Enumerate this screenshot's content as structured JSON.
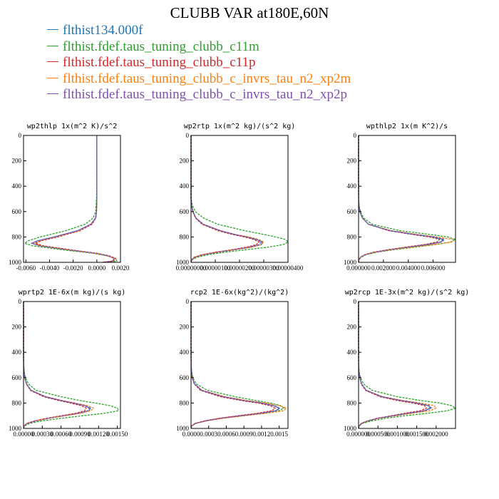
{
  "title": "CLUBB VAR at180E,60N",
  "legend": [
    {
      "name": "flthist134.000f",
      "color": "#1f77b4"
    },
    {
      "name": "flthist.fdef.taus_tuning_clubb_c11m",
      "color": "#2ca02c"
    },
    {
      "name": "flthist.fdef.taus_tuning_clubb_c11p",
      "color": "#d62728"
    },
    {
      "name": "flthist.fdef.taus_tuning_clubb_c_invrs_tau_n2_xp2m",
      "color": "#ff7f0e"
    },
    {
      "name": "flthist.fdef.taus_tuning_clubb_c_invrs_tau_n2_xp2p",
      "color": "#7f4fb0"
    }
  ],
  "chart_data": [
    {
      "type": "line",
      "title": "wp2thlp  1x(m^2 K)/s^2",
      "xlim": [
        -0.0062,
        0.002
      ],
      "ylim": [
        1000,
        0
      ],
      "y_reversed": true,
      "xticks": [
        -0.006,
        -0.004,
        -0.002,
        0.0,
        0.002
      ],
      "xtick_labels": [
        "-0.0060",
        "-0.0040",
        "-0.0020",
        "0.0000",
        "0.0020"
      ],
      "yticks": [
        0,
        200,
        400,
        600,
        800,
        1000
      ],
      "ytick_labels": [
        "0",
        "200",
        "400",
        "600",
        "800",
        "1000"
      ],
      "y": [
        0,
        200,
        400,
        500,
        600,
        650,
        700,
        750,
        800,
        830,
        850,
        870,
        900,
        930,
        950,
        970,
        990,
        1000
      ],
      "series": [
        {
          "values": [
            0.0,
            0.0,
            0.0,
            0.0,
            -3e-05,
            -0.0001,
            -0.0005,
            -0.0016,
            -0.0036,
            -0.005,
            -0.0055,
            -0.0048,
            -0.0025,
            0.0,
            0.001,
            0.0015,
            0.0013,
            0.0005
          ]
        },
        {
          "values": [
            0.0,
            0.0,
            -1e-05,
            -3e-05,
            -0.0001,
            -0.0003,
            -0.001,
            -0.0026,
            -0.0048,
            -0.0058,
            -0.0061,
            -0.0054,
            -0.003,
            -0.0002,
            0.0009,
            0.0016,
            0.0017,
            0.0007
          ]
        },
        {
          "values": [
            0.0,
            0.0,
            0.0,
            0.0,
            -2e-05,
            -8e-05,
            -0.0004,
            -0.0014,
            -0.0033,
            -0.0047,
            -0.0052,
            -0.0045,
            -0.0023,
            0.0001,
            0.0011,
            0.0016,
            0.0014,
            0.0005
          ]
        },
        {
          "values": [
            0.0,
            0.0,
            0.0,
            0.0,
            -3e-05,
            -0.0001,
            -0.0005,
            -0.0015,
            -0.0035,
            -0.0049,
            -0.0054,
            -0.0047,
            -0.0025,
            0.0,
            0.001,
            0.0015,
            0.0013,
            0.0005
          ]
        },
        {
          "values": [
            0.0,
            0.0,
            0.0,
            0.0,
            -3e-05,
            -0.0001,
            -0.0005,
            -0.0016,
            -0.0036,
            -0.005,
            -0.0055,
            -0.0048,
            -0.0025,
            0.0,
            0.001,
            0.0015,
            0.0013,
            0.0005
          ]
        }
      ]
    },
    {
      "type": "line",
      "title": "wp2rtp  1x(m^2 kg)/(s^2 kg)",
      "xlim": [
        0,
        4e-06
      ],
      "ylim": [
        1000,
        0
      ],
      "y_reversed": true,
      "xticks": [
        0,
        1e-06,
        2e-06,
        3e-06,
        4e-06
      ],
      "xtick_labels": [
        "0.00000000",
        "0.00000100",
        "0.00000200",
        "0.00000300",
        "0.00000400"
      ],
      "yticks": [
        0,
        200,
        400,
        600,
        800,
        1000
      ],
      "ytick_labels": [
        "0",
        "200",
        "400",
        "600",
        "800",
        "1000"
      ],
      "y": [
        0,
        400,
        500,
        550,
        600,
        650,
        700,
        750,
        780,
        800,
        820,
        840,
        860,
        880,
        900,
        920,
        940,
        960,
        980,
        1000
      ],
      "series": [
        {
          "values": [
            0,
            0,
            0,
            2e-08,
            8e-08,
            2e-07,
            5e-07,
            1.2e-06,
            1.8e-06,
            2.3e-06,
            2.7e-06,
            2.95e-06,
            2.9e-06,
            2.5e-06,
            1.8e-06,
            1.1e-06,
            5e-07,
            1.5e-07,
            3e-08,
            0
          ]
        },
        {
          "values": [
            0,
            0,
            1e-08,
            5e-08,
            1.8e-07,
            5e-07,
            1.1e-06,
            2.2e-06,
            3e-06,
            3.5e-06,
            3.9e-06,
            4e-06,
            3.8e-06,
            3.2e-06,
            2.3e-06,
            1.4e-06,
            7e-07,
            2.5e-07,
            5e-08,
            0
          ]
        },
        {
          "values": [
            0,
            0,
            0,
            2e-08,
            7e-08,
            1.8e-07,
            4.5e-07,
            1.1e-06,
            1.7e-06,
            2.2e-06,
            2.6e-06,
            2.8e-06,
            2.7e-06,
            2.3e-06,
            1.7e-06,
            1e-06,
            4.5e-07,
            1.2e-07,
            2e-08,
            0
          ]
        },
        {
          "values": [
            0,
            0,
            0,
            2e-08,
            8e-08,
            2e-07,
            5e-07,
            1.2e-06,
            1.8e-06,
            2.4e-06,
            2.8e-06,
            3e-06,
            2.9e-06,
            2.5e-06,
            1.8e-06,
            1.1e-06,
            5e-07,
            1.5e-07,
            3e-08,
            0
          ]
        },
        {
          "values": [
            0,
            0,
            0,
            2e-08,
            8e-08,
            2e-07,
            5e-07,
            1.2e-06,
            1.8e-06,
            2.3e-06,
            2.7e-06,
            2.9e-06,
            2.8e-06,
            2.4e-06,
            1.8e-06,
            1.1e-06,
            5e-07,
            1.5e-07,
            3e-08,
            0
          ]
        }
      ]
    },
    {
      "type": "line",
      "title": "wpthlp2  1x(m K^2)/s",
      "xlim": [
        0,
        0.0078
      ],
      "ylim": [
        1000,
        0
      ],
      "y_reversed": true,
      "xticks": [
        0,
        0.002,
        0.004,
        0.006
      ],
      "xtick_labels": [
        "0.000000",
        "0.002000",
        "0.004000",
        "0.006000"
      ],
      "yticks": [
        0,
        200,
        400,
        600,
        800,
        1000
      ],
      "ytick_labels": [
        "0",
        "200",
        "400",
        "600",
        "800",
        "1000"
      ],
      "y": [
        0,
        400,
        500,
        550,
        600,
        650,
        700,
        750,
        780,
        800,
        820,
        840,
        860,
        880,
        900,
        920,
        940,
        960,
        980,
        1000
      ],
      "series": [
        {
          "values": [
            0,
            0,
            1e-05,
            3e-05,
            0.0001,
            0.0003,
            0.0008,
            0.0025,
            0.0045,
            0.006,
            0.0068,
            0.0066,
            0.0055,
            0.004,
            0.0025,
            0.0013,
            0.0005,
            0.00015,
            3e-05,
            0
          ]
        },
        {
          "values": [
            0,
            0,
            1e-05,
            4e-05,
            0.00015,
            0.0004,
            0.0011,
            0.0033,
            0.0057,
            0.0072,
            0.0078,
            0.0074,
            0.0062,
            0.0046,
            0.0029,
            0.0015,
            0.0006,
            0.0002,
            4e-05,
            0
          ]
        },
        {
          "values": [
            0,
            0,
            1e-05,
            3e-05,
            0.0001,
            0.0003,
            0.0008,
            0.0024,
            0.0043,
            0.0057,
            0.0065,
            0.0063,
            0.0053,
            0.0038,
            0.0024,
            0.0012,
            0.0005,
            0.00015,
            3e-05,
            0
          ]
        },
        {
          "values": [
            0,
            0,
            1e-05,
            3e-05,
            0.0001,
            0.0003,
            0.0008,
            0.0026,
            0.0047,
            0.0063,
            0.0076,
            0.0075,
            0.0061,
            0.0043,
            0.0026,
            0.0013,
            0.0005,
            0.00015,
            3e-05,
            0
          ]
        },
        {
          "values": [
            0,
            0,
            1e-05,
            3e-05,
            0.0001,
            0.0003,
            0.0008,
            0.0025,
            0.0045,
            0.0061,
            0.0069,
            0.0067,
            0.0056,
            0.004,
            0.0025,
            0.0013,
            0.0005,
            0.00015,
            3e-05,
            0
          ]
        }
      ]
    },
    {
      "type": "line",
      "title": "wprtp2  1E-6x(m kg)/(s kg)",
      "xlim": [
        0,
        0.00155
      ],
      "ylim": [
        1000,
        0
      ],
      "y_reversed": true,
      "xticks": [
        0,
        0.0003,
        0.0006,
        0.0009,
        0.0012,
        0.0015
      ],
      "xtick_labels": [
        "0.00000",
        "0.00030",
        "0.00060",
        "0.00090",
        "0.00120",
        "0.00150"
      ],
      "yticks": [
        0,
        200,
        400,
        600,
        800,
        1000
      ],
      "ytick_labels": [
        "0",
        "200",
        "400",
        "600",
        "800",
        "1000"
      ],
      "y": [
        0,
        400,
        500,
        550,
        600,
        650,
        700,
        750,
        780,
        800,
        820,
        840,
        860,
        880,
        900,
        920,
        940,
        960,
        980,
        1000
      ],
      "series": [
        {
          "values": [
            0,
            0,
            2e-06,
            8e-06,
            2e-05,
            5e-05,
            0.00012,
            0.00035,
            0.0006,
            0.0008,
            0.00098,
            0.00107,
            0.00105,
            0.0009,
            0.00065,
            0.0004,
            0.0002,
            6e-05,
            1e-05,
            0
          ]
        },
        {
          "values": [
            0,
            0,
            3e-06,
            1.2e-05,
            3e-05,
            8e-05,
            0.0002,
            0.0006,
            0.0009,
            0.00115,
            0.00138,
            0.0015,
            0.00152,
            0.0013,
            0.00095,
            0.0006,
            0.0003,
            0.0001,
            2e-05,
            0
          ]
        },
        {
          "values": [
            0,
            0,
            2e-06,
            7e-06,
            1.8e-05,
            4.5e-05,
            0.00011,
            0.00032,
            0.00056,
            0.00075,
            0.00092,
            0.001,
            0.00098,
            0.00084,
            0.0006,
            0.00037,
            0.00018,
            5e-05,
            1e-05,
            0
          ]
        },
        {
          "values": [
            0,
            0,
            2e-06,
            8e-06,
            2e-05,
            5e-05,
            0.00012,
            0.00036,
            0.00062,
            0.00083,
            0.00102,
            0.00112,
            0.00108,
            0.00092,
            0.00066,
            0.0004,
            0.0002,
            6e-05,
            1e-05,
            0
          ]
        },
        {
          "values": [
            0,
            0,
            2e-06,
            8e-06,
            2e-05,
            5e-05,
            0.00012,
            0.00035,
            0.0006,
            0.0008,
            0.00097,
            0.00105,
            0.00103,
            0.00088,
            0.00064,
            0.0004,
            0.0002,
            6e-05,
            1e-05,
            0
          ]
        }
      ]
    },
    {
      "type": "line",
      "title": "rcp2  1E-6x(kg^2)/(kg^2)",
      "xlim": [
        0,
        0.00165
      ],
      "ylim": [
        1000,
        0
      ],
      "y_reversed": true,
      "xticks": [
        0,
        0.0003,
        0.0006,
        0.0009,
        0.0012,
        0.0015
      ],
      "xtick_labels": [
        "0.0000",
        "0.0003",
        "0.0006",
        "0.0009",
        "0.0012",
        "0.0015"
      ],
      "yticks": [
        0,
        200,
        400,
        600,
        800,
        1000
      ],
      "ytick_labels": [
        "0",
        "200",
        "400",
        "600",
        "800",
        "1000"
      ],
      "y": [
        0,
        400,
        500,
        550,
        600,
        650,
        700,
        750,
        780,
        800,
        820,
        840,
        860,
        880,
        900,
        920,
        940,
        960,
        980,
        1000
      ],
      "series": [
        {
          "values": [
            0,
            0,
            2e-06,
            8e-06,
            2e-05,
            6e-05,
            0.00018,
            0.00055,
            0.0009,
            0.0012,
            0.0014,
            0.0015,
            0.00145,
            0.0012,
            0.00085,
            0.0005,
            0.00025,
            8e-05,
            1e-05,
            0
          ]
        },
        {
          "values": [
            0,
            0,
            3e-06,
            1e-05,
            3e-05,
            9e-05,
            0.00028,
            0.00075,
            0.0011,
            0.00135,
            0.00152,
            0.00158,
            0.0015,
            0.00124,
            0.00088,
            0.00052,
            0.00026,
            8e-05,
            1e-05,
            0
          ]
        },
        {
          "values": [
            0,
            0,
            2e-06,
            7e-06,
            1.8e-05,
            5.5e-05,
            0.00016,
            0.0005,
            0.00085,
            0.00114,
            0.00134,
            0.00143,
            0.00138,
            0.00114,
            0.0008,
            0.00048,
            0.00024,
            7e-05,
            1e-05,
            0
          ]
        },
        {
          "values": [
            0,
            0,
            2e-06,
            8e-06,
            2e-05,
            6e-05,
            0.00019,
            0.00058,
            0.00095,
            0.00127,
            0.0015,
            0.00162,
            0.00158,
            0.0013,
            0.00092,
            0.00055,
            0.00027,
            8e-05,
            1e-05,
            0
          ]
        },
        {
          "values": [
            0,
            0,
            2e-06,
            8e-06,
            2e-05,
            6e-05,
            0.00018,
            0.00055,
            0.0009,
            0.0012,
            0.00141,
            0.00151,
            0.00146,
            0.0012,
            0.00085,
            0.0005,
            0.00025,
            8e-05,
            1e-05,
            0
          ]
        }
      ]
    },
    {
      "type": "line",
      "title": "wp2rcp  1E-3x(m^2 kg)/(s^2 kg)",
      "xlim": [
        0,
        0.0025
      ],
      "ylim": [
        1000,
        0
      ],
      "y_reversed": true,
      "xticks": [
        0,
        0.0005,
        0.001,
        0.0015,
        0.002
      ],
      "xtick_labels": [
        "0.000000",
        "0.000500",
        "0.001000",
        "0.001500",
        "0.002000"
      ],
      "yticks": [
        0,
        200,
        400,
        600,
        800,
        1000
      ],
      "ytick_labels": [
        "0",
        "200",
        "400",
        "600",
        "800",
        "1000"
      ],
      "y": [
        0,
        400,
        500,
        550,
        600,
        650,
        700,
        750,
        780,
        800,
        820,
        840,
        860,
        880,
        900,
        920,
        940,
        960,
        980,
        1000
      ],
      "series": [
        {
          "values": [
            0,
            0,
            3e-06,
            1e-05,
            3e-05,
            8e-05,
            0.0002,
            0.0006,
            0.0011,
            0.0015,
            0.0018,
            0.00185,
            0.0017,
            0.0013,
            0.0009,
            0.0005,
            0.00025,
            8e-05,
            1e-05,
            0
          ]
        },
        {
          "values": [
            0,
            0,
            5e-06,
            1.5e-05,
            5e-05,
            0.00013,
            0.00035,
            0.001,
            0.0016,
            0.0021,
            0.0024,
            0.0025,
            0.0023,
            0.0018,
            0.0012,
            0.0007,
            0.00035,
            0.0001,
            2e-05,
            0
          ]
        },
        {
          "values": [
            0,
            0,
            3e-06,
            1e-05,
            3e-05,
            7e-05,
            0.00018,
            0.00055,
            0.001,
            0.0014,
            0.0017,
            0.00175,
            0.0016,
            0.0012,
            0.00085,
            0.00048,
            0.00023,
            7e-05,
            1e-05,
            0
          ]
        },
        {
          "values": [
            0,
            0,
            3e-06,
            1e-05,
            3e-05,
            8e-05,
            0.0002,
            0.00062,
            0.00115,
            0.0016,
            0.00195,
            0.002,
            0.00185,
            0.0014,
            0.00095,
            0.00053,
            0.00026,
            8e-05,
            1e-05,
            0
          ]
        },
        {
          "values": [
            0,
            0,
            3e-06,
            1e-05,
            3e-05,
            8e-05,
            0.0002,
            0.0006,
            0.0011,
            0.0015,
            0.00182,
            0.00188,
            0.00172,
            0.0013,
            0.0009,
            0.0005,
            0.00025,
            8e-05,
            1e-05,
            0
          ]
        }
      ]
    }
  ]
}
